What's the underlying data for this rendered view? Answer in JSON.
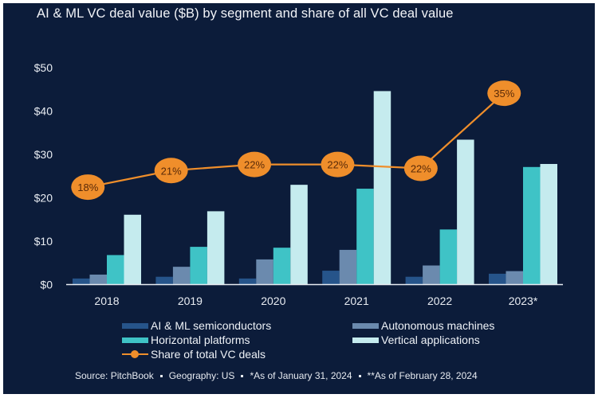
{
  "chart_data": {
    "type": "bar",
    "title": "AI & ML VC deal value ($B) by segment and share of all VC deal value",
    "xlabel": "",
    "ylabel": "",
    "ylim": [
      0,
      50
    ],
    "y_ticks": [
      0,
      10,
      20,
      30,
      40,
      50
    ],
    "y_tick_labels": [
      "$0",
      "$10",
      "$20",
      "$30",
      "$40",
      "$50"
    ],
    "categories": [
      "2018",
      "2019",
      "2020",
      "2021",
      "2022",
      "2023*"
    ],
    "series": [
      {
        "name": "AI & ML semiconductors",
        "color": "#26548a",
        "values": [
          1.4,
          1.8,
          1.4,
          3.2,
          1.8,
          2.5
        ]
      },
      {
        "name": "Autonomous machines",
        "color": "#6b8aae",
        "values": [
          2.3,
          4.1,
          5.8,
          8.0,
          4.4,
          3.1
        ]
      },
      {
        "name": "Horizontal platforms",
        "color": "#3fc3c6",
        "values": [
          6.8,
          8.7,
          8.5,
          22.1,
          12.7,
          27.1
        ]
      },
      {
        "name": "Vertical applications",
        "color": "#c5ebee",
        "values": [
          16.1,
          16.9,
          23.0,
          44.6,
          33.4,
          27.8
        ]
      }
    ],
    "line_series": {
      "name": "Share of total VC deals",
      "color": "#ef8e2b",
      "type": "line",
      "axis": "secondary",
      "values": [
        18,
        21,
        22,
        22,
        22,
        35
      ],
      "labels": [
        "18%",
        "21%",
        "22%",
        "22%",
        "22%",
        "35%"
      ]
    },
    "grid": false,
    "legend": "bottom"
  },
  "title": "AI & ML VC deal value ($B) by segment and share of all VC deal value",
  "legend": {
    "items": [
      {
        "label": "AI & ML semiconductors",
        "color": "#26548a"
      },
      {
        "label": "Autonomous machines",
        "color": "#6b8aae"
      },
      {
        "label": "Horizontal platforms",
        "color": "#3fc3c6"
      },
      {
        "label": "Vertical applications",
        "color": "#c5ebee"
      },
      {
        "label": "Share of total VC deals",
        "color": "#ef8e2b"
      }
    ]
  },
  "footer": {
    "source": "Source: PitchBook",
    "geography": "Geography: US",
    "note1": "*As of January 31, 2024",
    "note2": "**As of February 28, 2024"
  }
}
